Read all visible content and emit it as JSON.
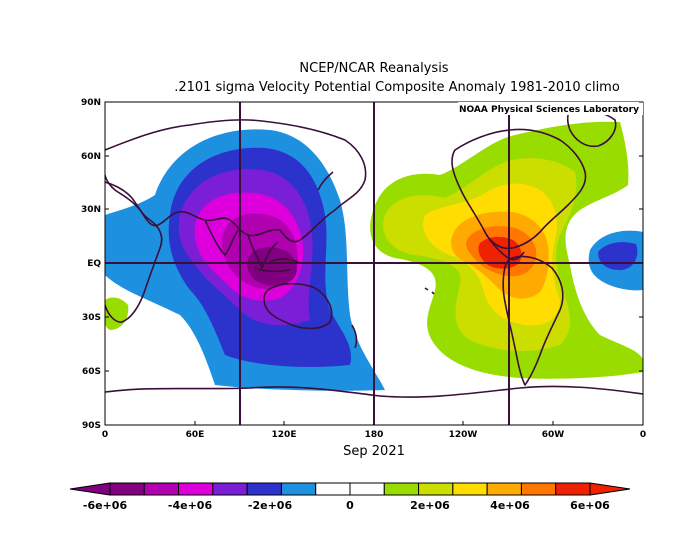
{
  "title_line1": "NCEP/NCAR Reanalysis",
  "title_line2": ".2101 sigma Velocity Potential  Composite Anomaly 1981-2010 climo",
  "credit": "NOAA Physical Sciences Laboratory",
  "date_label": "Sep 2021",
  "lat_labels": [
    "90N",
    "60N",
    "30N",
    "EQ",
    "30S",
    "60S",
    "90S"
  ],
  "lon_labels": [
    "0",
    "60E",
    "120E",
    "180",
    "120W",
    "60W",
    "0"
  ],
  "colorbar": {
    "labels": [
      "-6e+06",
      "-4e+06",
      "-2e+06",
      "0",
      "2e+06",
      "4e+06",
      "6e+06"
    ],
    "colors": [
      "#800080",
      "#b000b0",
      "#dd00dd",
      "#7a1fd6",
      "#2c33cc",
      "#1e90e0",
      "#ffffff",
      "#ffffff",
      "#99dd00",
      "#ccdd00",
      "#ffdd00",
      "#ffaa00",
      "#ff7700",
      "#ee2200"
    ]
  },
  "map_colors": {
    "neg_very_strong": "#800080",
    "neg_strong": "#b000b0",
    "neg_mid": "#dd00dd",
    "neg_moderate": "#7a1fd6",
    "neg_weak": "#2c33cc",
    "neg_light": "#1e90e0",
    "pos_light": "#99dd00",
    "pos_weak": "#ccdd00",
    "pos_mid": "#ffdd00",
    "pos_strong": "#ffaa00",
    "pos_very_strong": "#ff7700",
    "pos_max": "#ee2200",
    "coastline": "#3a0f3a"
  }
}
